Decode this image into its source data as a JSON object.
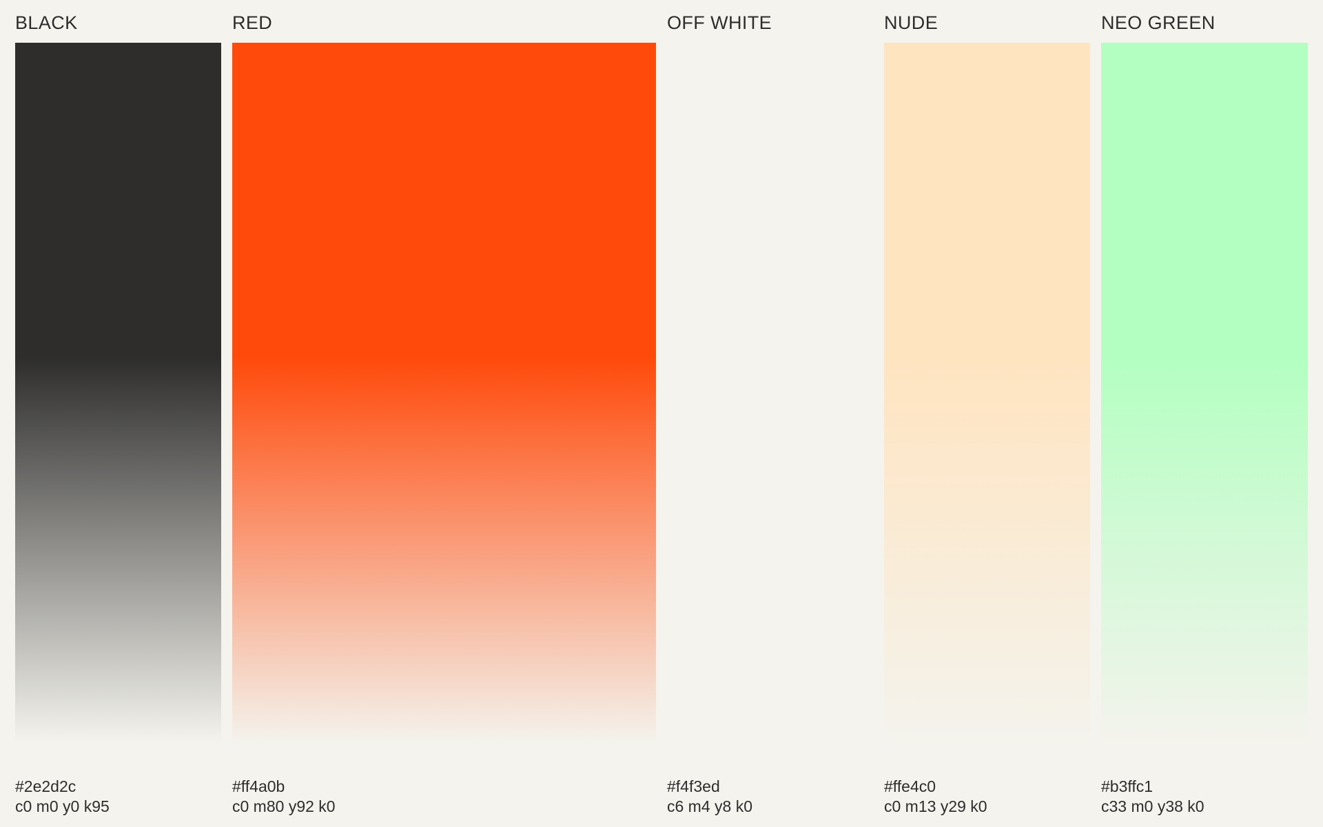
{
  "background": "#f4f3ed",
  "swatches": [
    {
      "name": "BLACK",
      "hex": "#2e2d2c",
      "cmyk": "c0 m0 y0 k95",
      "color": "#2e2d2c"
    },
    {
      "name": "RED",
      "hex": "#ff4a0b",
      "cmyk": "c0 m80 y92 k0",
      "color": "#ff4a0b"
    },
    {
      "name": "OFF WHITE",
      "hex": "#f4f3ed",
      "cmyk": "c6 m4 y8 k0",
      "color": "#f4f3ed"
    },
    {
      "name": "NUDE",
      "hex": "#ffe4c0",
      "cmyk": "c0 m13 y29 k0",
      "color": "#ffe4c0"
    },
    {
      "name": "NEO GREEN",
      "hex": "#b3ffc1",
      "cmyk": "c33 m0 y38 k0",
      "color": "#b3ffc1"
    }
  ]
}
